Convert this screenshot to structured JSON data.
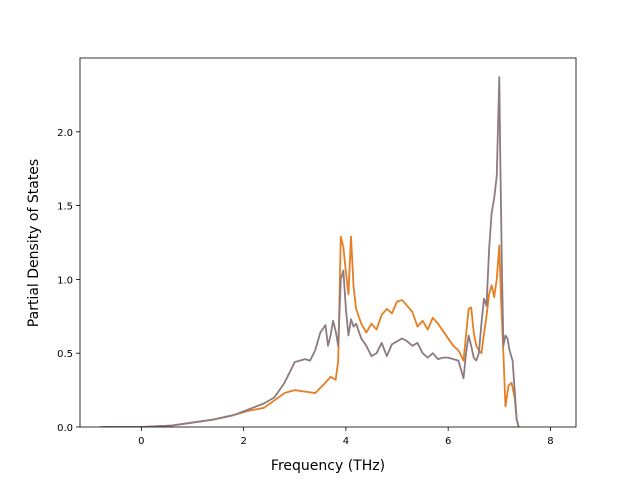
{
  "chart_data": {
    "type": "line",
    "title": "",
    "xlabel": "Frequency (THz)",
    "ylabel": "Partial Density of States",
    "xlim": [
      -1.2,
      8.5
    ],
    "ylim": [
      0.0,
      2.5
    ],
    "xticks": [
      0,
      2,
      4,
      6,
      8
    ],
    "xtick_labels": [
      "0",
      "2",
      "4",
      "6",
      "8"
    ],
    "yticks": [
      0.0,
      0.5,
      1.0,
      1.5,
      2.0
    ],
    "ytick_labels": [
      "0.0",
      "0.5",
      "1.0",
      "1.5",
      "2.0"
    ],
    "grid": false,
    "legend": "none",
    "series": [
      {
        "color": "#e67e22",
        "x": [
          -0.8,
          0.0,
          0.3,
          0.6,
          1.0,
          1.4,
          1.8,
          2.1,
          2.4,
          2.6,
          2.8,
          3.0,
          3.2,
          3.4,
          3.6,
          3.7,
          3.8,
          3.85,
          3.9,
          3.95,
          4.0,
          4.05,
          4.1,
          4.15,
          4.2,
          4.3,
          4.4,
          4.5,
          4.6,
          4.7,
          4.8,
          4.9,
          5.0,
          5.1,
          5.2,
          5.3,
          5.4,
          5.5,
          5.6,
          5.7,
          5.8,
          5.9,
          6.0,
          6.1,
          6.2,
          6.3,
          6.4,
          6.45,
          6.5,
          6.55,
          6.6,
          6.65,
          6.7,
          6.75,
          6.8,
          6.85,
          6.9,
          6.95,
          7.0,
          7.03,
          7.08,
          7.12,
          7.18,
          7.24,
          7.3,
          7.34,
          7.38
        ],
        "y": [
          0.0,
          0.0,
          0.005,
          0.01,
          0.03,
          0.05,
          0.08,
          0.11,
          0.13,
          0.18,
          0.23,
          0.25,
          0.24,
          0.23,
          0.3,
          0.34,
          0.32,
          0.45,
          1.29,
          1.22,
          1.05,
          0.9,
          1.29,
          0.95,
          0.8,
          0.7,
          0.64,
          0.7,
          0.66,
          0.76,
          0.8,
          0.77,
          0.85,
          0.86,
          0.82,
          0.78,
          0.68,
          0.72,
          0.66,
          0.74,
          0.7,
          0.65,
          0.6,
          0.55,
          0.52,
          0.45,
          0.8,
          0.81,
          0.64,
          0.55,
          0.52,
          0.5,
          0.63,
          0.75,
          0.9,
          0.96,
          0.88,
          1.0,
          1.23,
          0.9,
          0.5,
          0.14,
          0.28,
          0.3,
          0.2,
          0.05,
          0.0
        ]
      },
      {
        "color": "#8c7b80",
        "x": [
          -0.8,
          0.0,
          0.3,
          0.6,
          1.0,
          1.4,
          1.8,
          2.1,
          2.4,
          2.6,
          2.8,
          3.0,
          3.2,
          3.3,
          3.4,
          3.5,
          3.6,
          3.65,
          3.7,
          3.75,
          3.8,
          3.85,
          3.9,
          3.95,
          4.0,
          4.05,
          4.1,
          4.15,
          4.2,
          4.3,
          4.4,
          4.5,
          4.6,
          4.7,
          4.8,
          4.9,
          5.0,
          5.1,
          5.2,
          5.3,
          5.4,
          5.5,
          5.6,
          5.7,
          5.8,
          5.9,
          6.0,
          6.1,
          6.2,
          6.3,
          6.35,
          6.4,
          6.45,
          6.5,
          6.55,
          6.6,
          6.65,
          6.7,
          6.75,
          6.8,
          6.85,
          6.9,
          6.95,
          7.0,
          7.02,
          7.05,
          7.08,
          7.12,
          7.16,
          7.2,
          7.26,
          7.3,
          7.34,
          7.38
        ],
        "y": [
          0.0,
          0.0,
          0.005,
          0.01,
          0.03,
          0.05,
          0.08,
          0.12,
          0.16,
          0.2,
          0.3,
          0.44,
          0.46,
          0.45,
          0.52,
          0.64,
          0.69,
          0.55,
          0.62,
          0.72,
          0.65,
          0.55,
          1.0,
          1.06,
          0.8,
          0.62,
          0.73,
          0.68,
          0.7,
          0.6,
          0.55,
          0.48,
          0.5,
          0.57,
          0.48,
          0.56,
          0.58,
          0.6,
          0.58,
          0.55,
          0.57,
          0.5,
          0.47,
          0.5,
          0.46,
          0.47,
          0.47,
          0.46,
          0.45,
          0.33,
          0.5,
          0.62,
          0.55,
          0.47,
          0.45,
          0.5,
          0.7,
          0.87,
          0.82,
          1.2,
          1.45,
          1.55,
          1.7,
          2.37,
          1.8,
          1.1,
          0.55,
          0.62,
          0.6,
          0.52,
          0.45,
          0.25,
          0.05,
          0.0
        ]
      }
    ]
  }
}
